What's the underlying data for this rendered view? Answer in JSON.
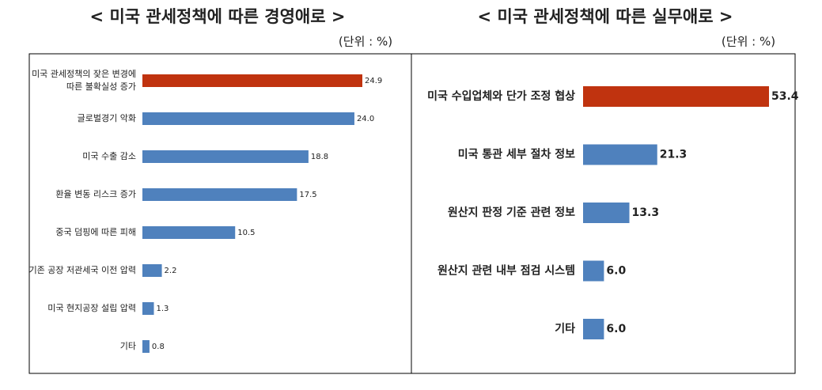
{
  "chart_data": [
    {
      "type": "bar",
      "orientation": "horizontal",
      "title": "< 미국 관세정책에 따른 경영애로 >",
      "unit": "(단위 : %)",
      "categories": [
        "미국 관세정책의 잦은 변경에\n따른 불확실성 증가",
        "글로벌경기 악화",
        "미국 수출 감소",
        "환율 변동 리스크 증가",
        "중국 덤핑에 따른 피해",
        "기존 공장 저관세국 이전 압력",
        "미국 현지공장 설립 압력",
        "기타"
      ],
      "values": [
        24.9,
        24.0,
        18.8,
        17.5,
        10.5,
        2.2,
        1.3,
        0.8
      ],
      "value_labels": [
        "24.9",
        "24.0",
        "18.8",
        "17.5",
        "10.5",
        "2.2",
        "1.3",
        "0.8"
      ],
      "colors": [
        "#c0330f",
        "#4f81bd",
        "#4f81bd",
        "#4f81bd",
        "#4f81bd",
        "#4f81bd",
        "#4f81bd",
        "#4f81bd"
      ]
    },
    {
      "type": "bar",
      "orientation": "horizontal",
      "title": "< 미국 관세정책에 따른 실무애로 >",
      "unit": "(단위 : %)",
      "categories": [
        "미국 수입업체와 단가 조정 협상",
        "미국 통관 세부 절차 정보",
        "원산지 판정 기준 관련 정보",
        "원산지 관련 내부 점검 시스템",
        "기타"
      ],
      "values": [
        53.4,
        21.3,
        13.3,
        6.0,
        6.0
      ],
      "value_labels": [
        "53.4",
        "21.3",
        "13.3",
        "6.0",
        "6.0"
      ],
      "colors": [
        "#c0330f",
        "#4f81bd",
        "#4f81bd",
        "#4f81bd",
        "#4f81bd"
      ]
    }
  ]
}
